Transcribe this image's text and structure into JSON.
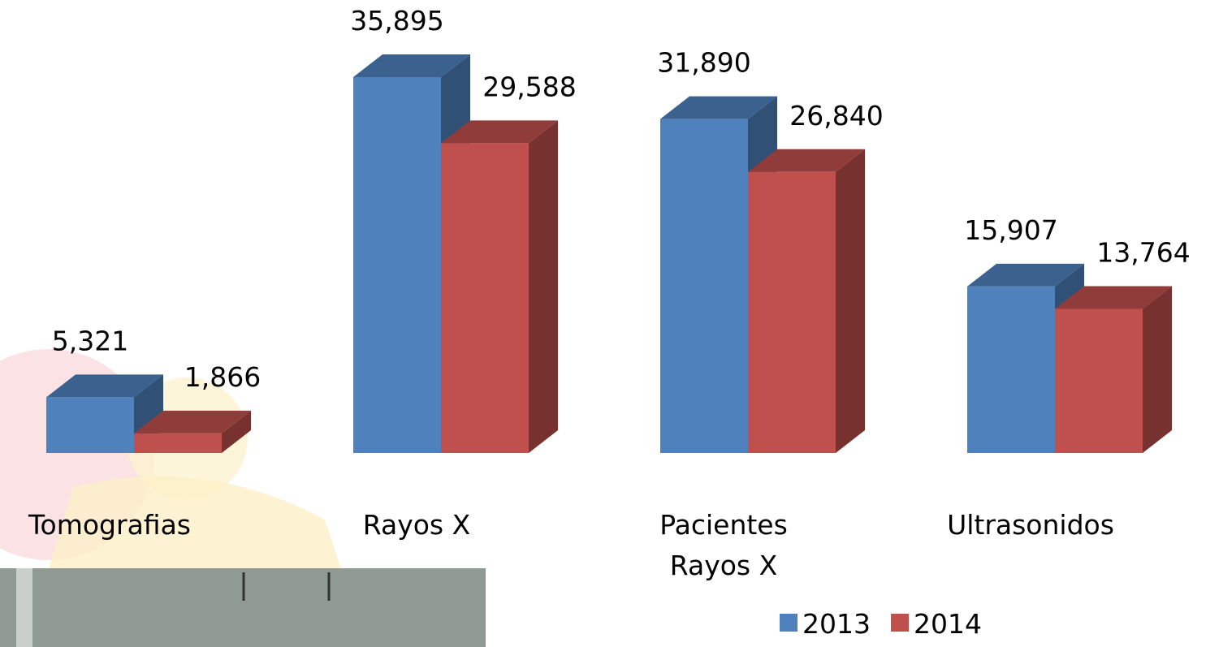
{
  "chart_data": {
    "type": "bar3d",
    "categories": [
      "Tomografias",
      "Rayos X",
      "Pacientes Rayos X",
      "Ultrasonidos"
    ],
    "series": [
      {
        "name": "2013",
        "color": "#4f81bd",
        "values": [
          5321,
          35895,
          31890,
          15907
        ],
        "value_labels": [
          "5,321",
          "35,895",
          "31,890",
          "15,907"
        ]
      },
      {
        "name": "2014",
        "color": "#c0504d",
        "values": [
          1866,
          29588,
          26840,
          13764
        ],
        "value_labels": [
          "1,866",
          "29,588",
          "26,840",
          "13,764"
        ]
      }
    ],
    "legend": "bottom-right"
  }
}
